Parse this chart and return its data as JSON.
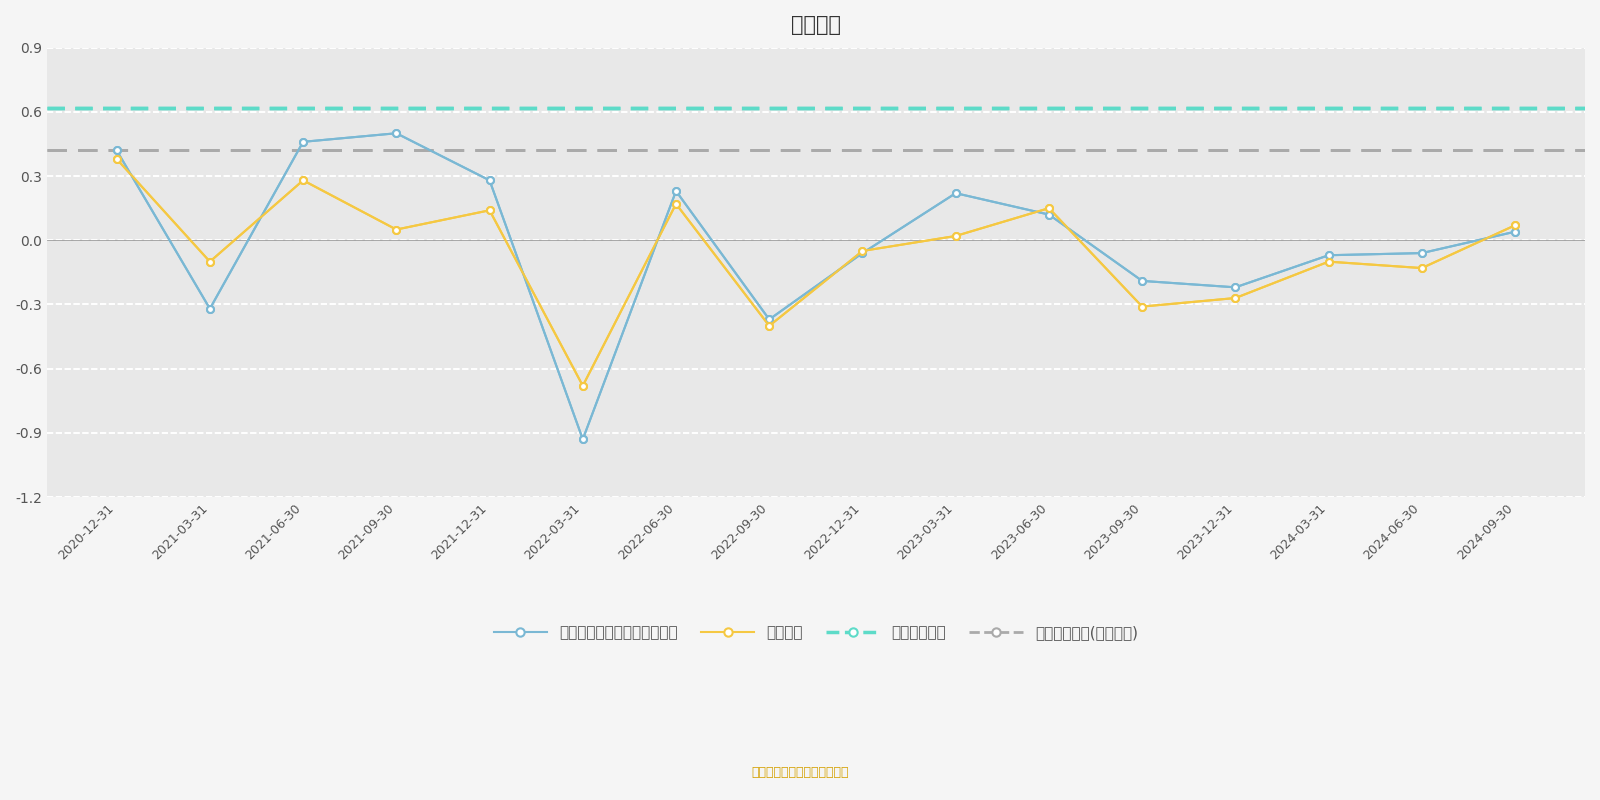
{
  "title": "夏普比率",
  "source_text": "制图数据来自恒生聚源数据库",
  "background_color": "#f5f5f5",
  "plot_bg_color": "#f5f5f5",
  "text_color": "#555555",
  "x_labels": [
    "2020-12-31",
    "2021-03-31",
    "2021-06-30",
    "2021-09-30",
    "2021-12-31",
    "2022-03-31",
    "2022-06-30",
    "2022-09-30",
    "2022-12-31",
    "2023-03-31",
    "2023-06-30",
    "2023-09-30",
    "2023-12-31",
    "2024-03-31",
    "2024-06-30",
    "2024-09-30"
  ],
  "fund_values": [
    0.42,
    -0.32,
    0.46,
    0.5,
    0.28,
    -0.93,
    0.23,
    -0.37,
    -0.06,
    0.22,
    0.12,
    -0.19,
    -0.22,
    -0.07,
    -0.06,
    0.04
  ],
  "peer_values": [
    0.38,
    -0.1,
    0.28,
    0.05,
    0.14,
    -0.68,
    0.17,
    -0.4,
    -0.05,
    0.02,
    0.15,
    -0.31,
    -0.27,
    -0.1,
    -0.13,
    0.07
  ],
  "five_year_sharpe": 0.62,
  "five_year_sharpe_peer": 0.42,
  "fund_color": "#7ab8d4",
  "peer_color": "#f5c842",
  "five_year_color": "#5ddbc8",
  "five_year_peer_color": "#aaaaaa",
  "ylim": [
    -1.2,
    0.9
  ],
  "yticks": [
    -1.2,
    -0.9,
    -0.6,
    -0.3,
    0.0,
    0.3,
    0.6,
    0.9
  ],
  "grid_color": "#ffffff",
  "grid_alpha": 1.0,
  "legend_labels": [
    "中邮未来新蓝筹灵活配置混合",
    "同类平均",
    "五年夏普比率",
    "五年夏普比率(同类均值)"
  ]
}
